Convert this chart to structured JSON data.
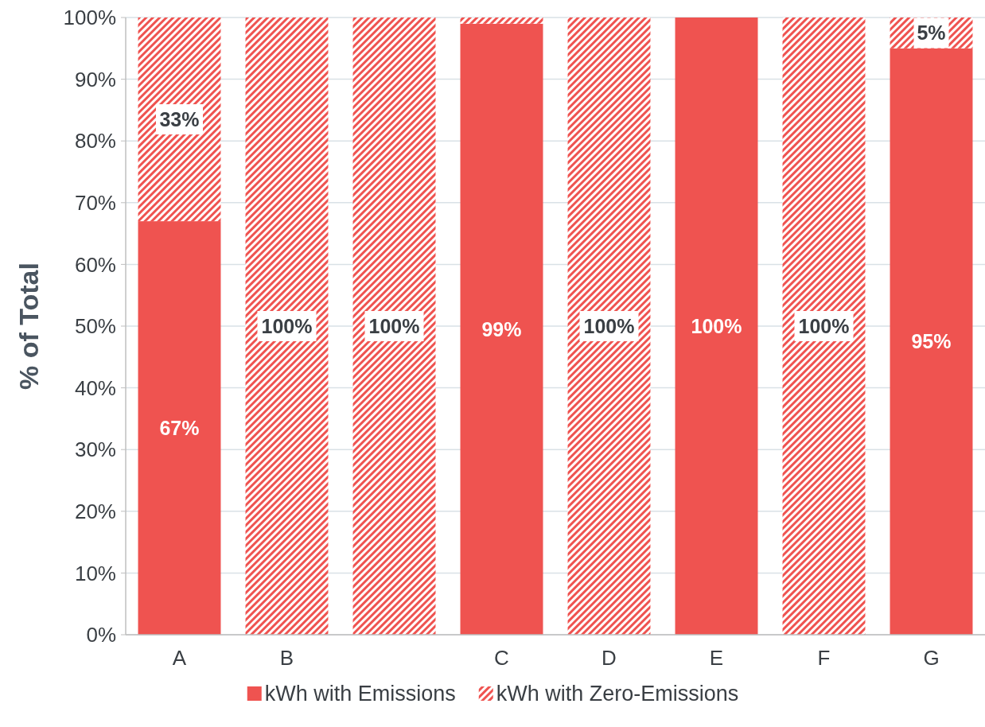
{
  "chart_data": {
    "type": "bar",
    "stacked": true,
    "ylabel": "% of Total",
    "categories": [
      "A",
      "B",
      null,
      "C",
      "D",
      "E",
      "F",
      "G"
    ],
    "series": [
      {
        "name": "kWh with Emissions",
        "color": "#ef5350",
        "values": [
          67,
          0,
          0,
          99,
          0,
          100,
          0,
          95
        ],
        "value_labels": [
          "67%",
          null,
          null,
          "99%",
          null,
          "100%",
          null,
          "95%"
        ]
      },
      {
        "name": "kWh with Zero-Emissions",
        "color": "#ef5350",
        "values": [
          33,
          100,
          100,
          1,
          100,
          0,
          100,
          5
        ],
        "value_labels": [
          "33%",
          "100%",
          "100%",
          null,
          "100%",
          null,
          "100%",
          "5%"
        ]
      }
    ],
    "ylim": [
      0,
      100
    ],
    "yticks": [
      {
        "value": 0,
        "label": "0%"
      },
      {
        "value": 10,
        "label": "10%"
      },
      {
        "value": 20,
        "label": "20%"
      },
      {
        "value": 30,
        "label": "30%"
      },
      {
        "value": 40,
        "label": "40%"
      },
      {
        "value": 50,
        "label": "50%"
      },
      {
        "value": 60,
        "label": "60%"
      },
      {
        "value": 70,
        "label": "70%"
      },
      {
        "value": 80,
        "label": "80%"
      },
      {
        "value": 90,
        "label": "90%"
      },
      {
        "value": 100,
        "label": "100%"
      }
    ],
    "grid": "y",
    "legend": "bottom"
  }
}
